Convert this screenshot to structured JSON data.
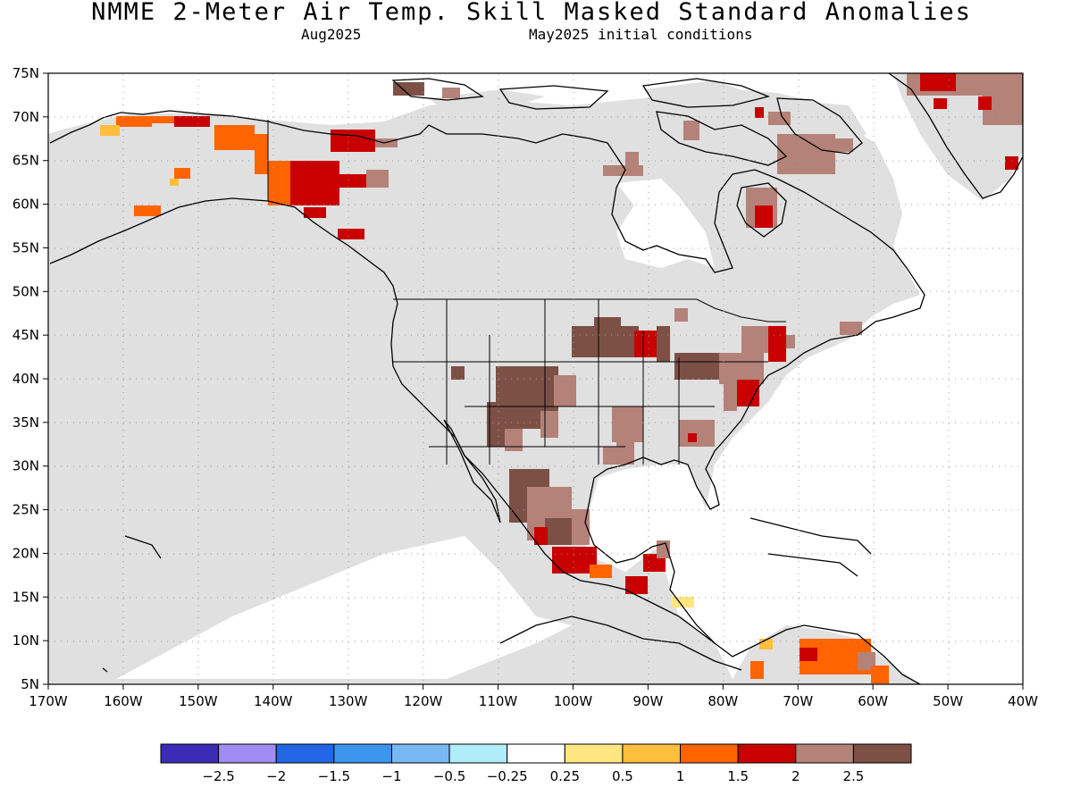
{
  "title": "NMME 2-Meter Air Temp. Skill Masked Standard Anomalies",
  "subtitle_left": "Aug2025",
  "subtitle_right": "May2025 initial conditions",
  "map": {
    "region": "North America",
    "lon_range": [
      -170,
      -40
    ],
    "lat_range": [
      5,
      75
    ],
    "lat_labels": [
      "75N",
      "70N",
      "65N",
      "60N",
      "55N",
      "50N",
      "45N",
      "40N",
      "35N",
      "30N",
      "25N",
      "20N",
      "15N",
      "10N",
      "5N"
    ],
    "lon_labels": [
      "170W",
      "160W",
      "150W",
      "140W",
      "130W",
      "120W",
      "110W",
      "100W",
      "90W",
      "80W",
      "70W",
      "60W",
      "50W",
      "40W"
    ],
    "grid": "dotted",
    "masked_color": "#e0e0e0"
  },
  "legend": {
    "colors": [
      "#3b2bb5",
      "#a08cf5",
      "#2266e6",
      "#3c96f0",
      "#78b9f5",
      "#b0ecfa",
      "#ffffff",
      "#ffe680",
      "#ffbe3c",
      "#ff6400",
      "#c80000",
      "#b48278",
      "#7d5046"
    ],
    "labels": [
      "−2.5",
      "−2",
      "−1.5",
      "−1",
      "−0.5",
      "−0.25",
      "0.25",
      "0.5",
      "1",
      "1.5",
      "2",
      "2.5"
    ]
  }
}
